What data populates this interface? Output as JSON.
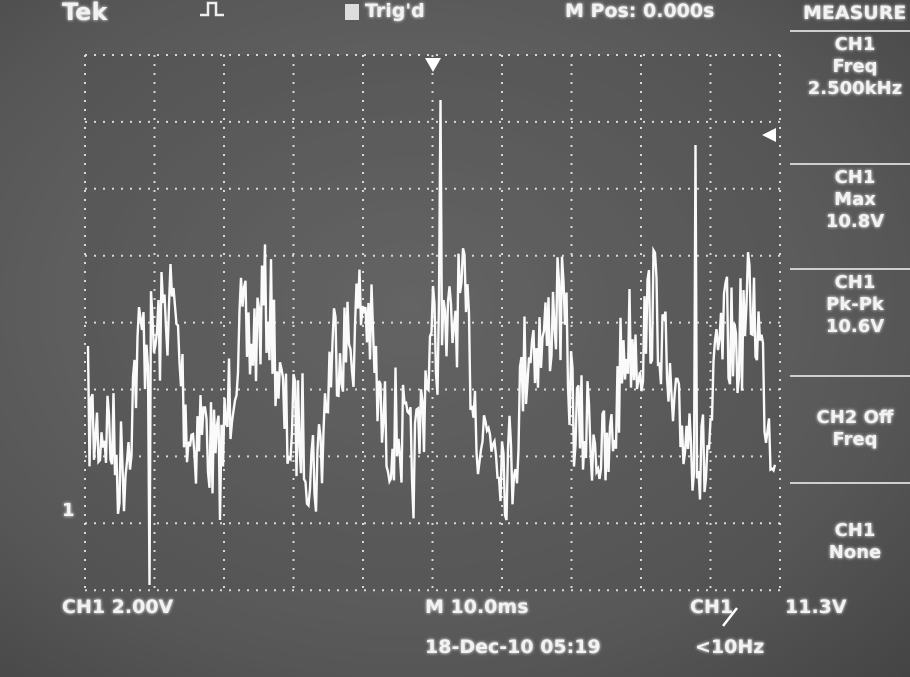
{
  "header": {
    "brand": "Tek",
    "trigger_status": "Trig'd",
    "position": "M Pos: 0.000s"
  },
  "menu": {
    "title": "MEASURE",
    "items": [
      {
        "lines": [
          "CH1",
          "Freq",
          "2.500kHz"
        ]
      },
      {
        "lines": [
          "CH1",
          "Max",
          "10.8V"
        ]
      },
      {
        "lines": [
          "CH1",
          "Pk-Pk",
          "10.6V"
        ]
      },
      {
        "lines": [
          "CH2 Off",
          "Freq"
        ]
      },
      {
        "lines": [
          "CH1",
          "None"
        ]
      }
    ]
  },
  "channel_marker": "1",
  "footer": {
    "channel_scale": "CH1 2.00V",
    "time_scale": "M 10.0ms",
    "date": "18-Dec-10 05:19",
    "trigger_source": "CH1",
    "trigger_level": "11.3V",
    "trigger_freq": "<10Hz"
  }
}
